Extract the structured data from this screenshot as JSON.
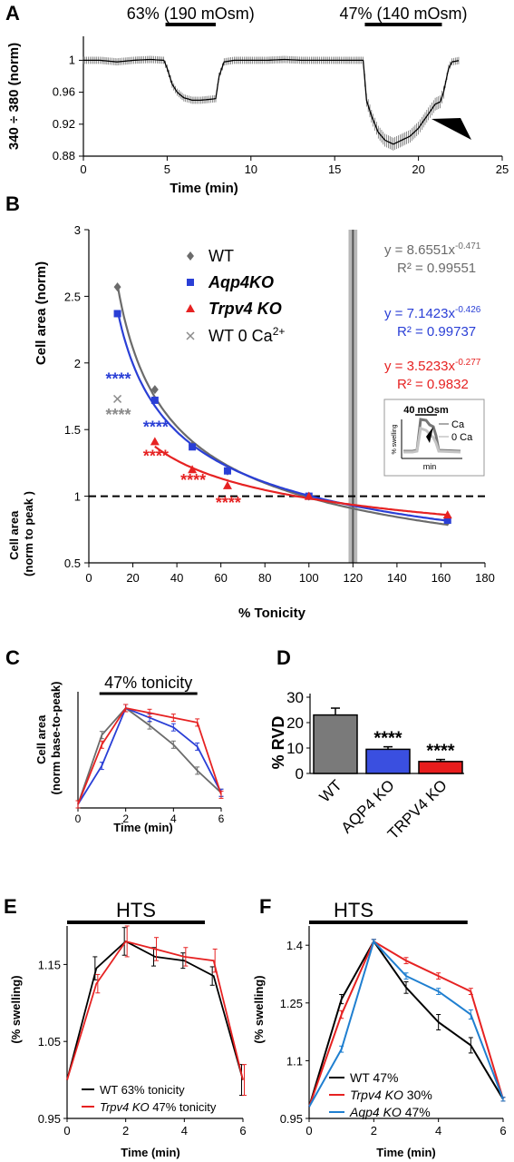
{
  "figure": {
    "panels": [
      "A",
      "B",
      "C",
      "D",
      "E",
      "F"
    ]
  },
  "chart_data": [
    {
      "panel": "A",
      "type": "line",
      "xlabel": "Time (min)",
      "ylabel": "340 ÷ 380 (norm)",
      "xlim": [
        0,
        25
      ],
      "ylim": [
        0.88,
        1.03
      ],
      "xticks": [
        "0",
        "5",
        "10",
        "15",
        "20",
        "25"
      ],
      "yticks": [
        "0.88",
        "0.92",
        "0.96",
        "1"
      ],
      "bars": [
        {
          "label": "63% (190 mOsm)",
          "x0": 4.9,
          "x1": 7.9
        },
        {
          "label": "47% (140 mOsm)",
          "x0": 16.8,
          "x1": 21.4
        }
      ],
      "x": [
        0,
        1,
        2,
        3,
        4,
        4.8,
        5.0,
        5.3,
        5.6,
        6,
        6.5,
        7,
        7.5,
        7.9,
        8.1,
        8.4,
        9,
        10,
        11,
        12,
        13,
        14,
        15,
        16,
        16.7,
        16.9,
        17.2,
        17.6,
        18,
        18.5,
        19,
        19.5,
        20,
        20.5,
        21,
        21.3,
        21.5,
        21.8,
        22,
        22.5
      ],
      "y": [
        1.0,
        1.0,
        0.998,
        1.0,
        1.001,
        1.0,
        0.99,
        0.97,
        0.96,
        0.953,
        0.95,
        0.95,
        0.951,
        0.952,
        0.98,
        0.998,
        1.0,
        1.0,
        1.0,
        1.001,
        1.0,
        1.0,
        1.0,
        1.0,
        1.0,
        0.95,
        0.93,
        0.91,
        0.9,
        0.895,
        0.9,
        0.905,
        0.915,
        0.93,
        0.945,
        0.948,
        0.96,
        0.99,
        0.998,
        1.0
      ],
      "annotation": "arrowhead"
    },
    {
      "panel": "B",
      "type": "scatter",
      "xlabel": "% Tonicity",
      "ylabel": "Cell area (norm)",
      "ylabel2": "Cell area (norm to peak )",
      "xlim": [
        0,
        180
      ],
      "ylim": [
        0.5,
        3
      ],
      "xticks": [
        "0",
        "20",
        "40",
        "60",
        "80",
        "100",
        "120",
        "140",
        "160",
        "180"
      ],
      "yticks": [
        "0.5",
        "1",
        "1.5",
        "2",
        "2.5",
        "3"
      ],
      "series": [
        {
          "name": "WT",
          "color": "#6b6b6b",
          "marker": "diamond",
          "x": [
            13,
            30,
            47,
            63,
            100,
            163
          ],
          "y": [
            2.57,
            1.8,
            1.38,
            1.19,
            1.0,
            0.81
          ],
          "fit": {
            "a": 8.6551,
            "b": -0.471
          },
          "equation": "y = 8.6551x",
          "exponent": "-0.471",
          "r2": "R² = 0.99551"
        },
        {
          "name": "Aqp4KO",
          "color": "#2a3fd6",
          "marker": "square",
          "x": [
            13,
            30,
            47,
            63,
            100,
            163
          ],
          "y": [
            2.37,
            1.72,
            1.37,
            1.19,
            1.0,
            0.82
          ],
          "fit": {
            "a": 7.1423,
            "b": -0.426
          },
          "equation": "y = 7.1423x",
          "exponent": "-0.426",
          "r2": "R² = 0.99737"
        },
        {
          "name": "Trpv4 KO",
          "color": "#e62222",
          "marker": "triangle",
          "x": [
            30,
            47,
            63,
            100,
            163
          ],
          "y": [
            1.41,
            1.2,
            1.08,
            1.0,
            0.86
          ],
          "fit": {
            "a": 3.5233,
            "b": -0.277
          },
          "equation": "y = 3.5233x",
          "exponent": "-0.277",
          "r2": "R² = 0.9832"
        },
        {
          "name": "WT 0 Ca",
          "superscript": "2+",
          "color": "#8a8a8a",
          "marker": "cross",
          "x": [
            13
          ],
          "y": [
            1.73
          ]
        }
      ],
      "stars": [
        {
          "text": "****",
          "color": "#2a3fd6",
          "x": 13,
          "y": 1.88
        },
        {
          "text": "****",
          "color": "#8a8a8a",
          "x": 13,
          "y": 1.61
        },
        {
          "text": "****",
          "color": "#2a3fd6",
          "x": 30,
          "y": 1.52
        },
        {
          "text": "****",
          "color": "#e62222",
          "x": 30,
          "y": 1.3
        },
        {
          "text": "****",
          "color": "#e62222",
          "x": 47,
          "y": 1.12
        },
        {
          "text": "****",
          "color": "#e62222",
          "x": 63,
          "y": 0.95
        }
      ],
      "dashed_y": 1,
      "vbar_x": [
        118,
        122
      ],
      "inset": {
        "title": "40 mOsm",
        "ylabel": "% swelling",
        "xlabel": "min",
        "legend": [
          "Ca",
          "0 Ca"
        ]
      }
    },
    {
      "panel": "C",
      "type": "line",
      "title": "47% tonicity",
      "xlabel": "Time (min)",
      "ylabel": "Cell area (norm base-to-peak)",
      "xlim": [
        0,
        6
      ],
      "ylim": [
        0,
        1
      ],
      "xticks": [
        "0",
        "2",
        "4",
        "6"
      ],
      "bar": {
        "x0": 0.9,
        "x1": 5.0
      },
      "series": [
        {
          "name": "WT",
          "color": "#6b6b6b",
          "x": [
            0,
            1,
            2,
            3,
            4,
            5,
            6
          ],
          "y": [
            0.0,
            0.72,
            1.0,
            0.82,
            0.62,
            0.35,
            0.12
          ]
        },
        {
          "name": "Aqp4KO",
          "color": "#2a3fd6",
          "x": [
            0,
            1,
            2,
            3,
            4,
            5,
            6
          ],
          "y": [
            0.0,
            0.4,
            1.0,
            0.9,
            0.8,
            0.6,
            0.12
          ]
        },
        {
          "name": "Trpv4 KO",
          "color": "#e62222",
          "x": [
            0,
            1,
            2,
            3,
            4,
            5,
            6
          ],
          "y": [
            0.0,
            0.62,
            1.0,
            0.95,
            0.9,
            0.85,
            0.1
          ]
        }
      ]
    },
    {
      "panel": "D",
      "type": "bar",
      "ylabel": "% RVD",
      "ylim": [
        0,
        30
      ],
      "yticks": [
        "0",
        "10",
        "20",
        "30"
      ],
      "categories": [
        "WT",
        "AQP4 KO",
        "TRPV4 KO"
      ],
      "values": [
        23,
        9.5,
        4.7
      ],
      "errors": [
        2.7,
        1.0,
        0.8
      ],
      "colors": [
        "#7a7a7a",
        "#3a4fe0",
        "#e81d1d"
      ],
      "significance": [
        "",
        "****",
        "****"
      ]
    },
    {
      "panel": "E",
      "type": "line",
      "title": "HTS",
      "ylabel": "(% swelling)",
      "xlabel": "Time (min)",
      "xlim": [
        0,
        6
      ],
      "ylim": [
        0.95,
        1.2
      ],
      "xticks": [
        "0",
        "2",
        "4",
        "6"
      ],
      "yticks": [
        "0.95",
        "1.05",
        "1.15"
      ],
      "bar": {
        "x0": 0,
        "x1": 4.7
      },
      "series": [
        {
          "name": "WT 63% tonicity",
          "label_parts": [
            "WT 63% tonicity"
          ],
          "color": "#000000",
          "x": [
            0,
            1,
            2,
            3,
            4,
            5,
            6
          ],
          "y": [
            1.0,
            1.145,
            1.18,
            1.16,
            1.155,
            1.135,
            1.0
          ],
          "err": [
            0,
            0.015,
            0.018,
            0.012,
            0.01,
            0.012,
            0.02
          ]
        },
        {
          "name": "Trpv4 KO 47% tonicity",
          "label_parts": [
            "Trpv4 KO",
            " 47% tonicity"
          ],
          "color": "#e62222",
          "x": [
            0,
            1,
            2,
            3,
            4,
            5,
            6
          ],
          "y": [
            1.0,
            1.125,
            1.18,
            1.17,
            1.16,
            1.155,
            1.0
          ],
          "err": [
            0,
            0.012,
            0.02,
            0.015,
            0.012,
            0.015,
            0.02
          ]
        }
      ]
    },
    {
      "panel": "F",
      "type": "line",
      "title": "HTS",
      "ylabel": "(% swelling)",
      "xlabel": "Time (min)",
      "xlim": [
        0,
        6
      ],
      "ylim": [
        0.95,
        1.45
      ],
      "xticks": [
        "0",
        "2",
        "4",
        "6"
      ],
      "yticks": [
        "0.95",
        "1.1",
        "1.25",
        "1.4"
      ],
      "bar": {
        "x0": 0,
        "x1": 4.9
      },
      "series": [
        {
          "name": "WT 47%",
          "label_parts": [
            "WT 47%"
          ],
          "color": "#000000",
          "x": [
            0,
            1,
            2,
            3,
            4,
            5,
            6
          ],
          "y": [
            0.98,
            1.26,
            1.41,
            1.29,
            1.2,
            1.14,
            1.0
          ],
          "err": [
            0,
            0.012,
            0.005,
            0.015,
            0.02,
            0.02,
            0.005
          ]
        },
        {
          "name": "Trpv4 KO 30%",
          "label_parts": [
            "Trpv4 KO",
            " 30%"
          ],
          "color": "#e62222",
          "x": [
            0,
            1,
            2,
            3,
            4,
            5,
            6
          ],
          "y": [
            0.98,
            1.22,
            1.41,
            1.36,
            1.32,
            1.28,
            1.0
          ],
          "err": [
            0,
            0.01,
            0.005,
            0.008,
            0.008,
            0.008,
            0.005
          ]
        },
        {
          "name": "Aqp4 KO 47%",
          "label_parts": [
            "Aqp4 KO",
            " 47%"
          ],
          "color": "#1f7fd0",
          "x": [
            0,
            1,
            2,
            3,
            4,
            5,
            6
          ],
          "y": [
            0.98,
            1.13,
            1.41,
            1.32,
            1.28,
            1.22,
            1.0
          ],
          "err": [
            0,
            0.008,
            0.005,
            0.008,
            0.008,
            0.012,
            0.005
          ]
        }
      ]
    }
  ]
}
